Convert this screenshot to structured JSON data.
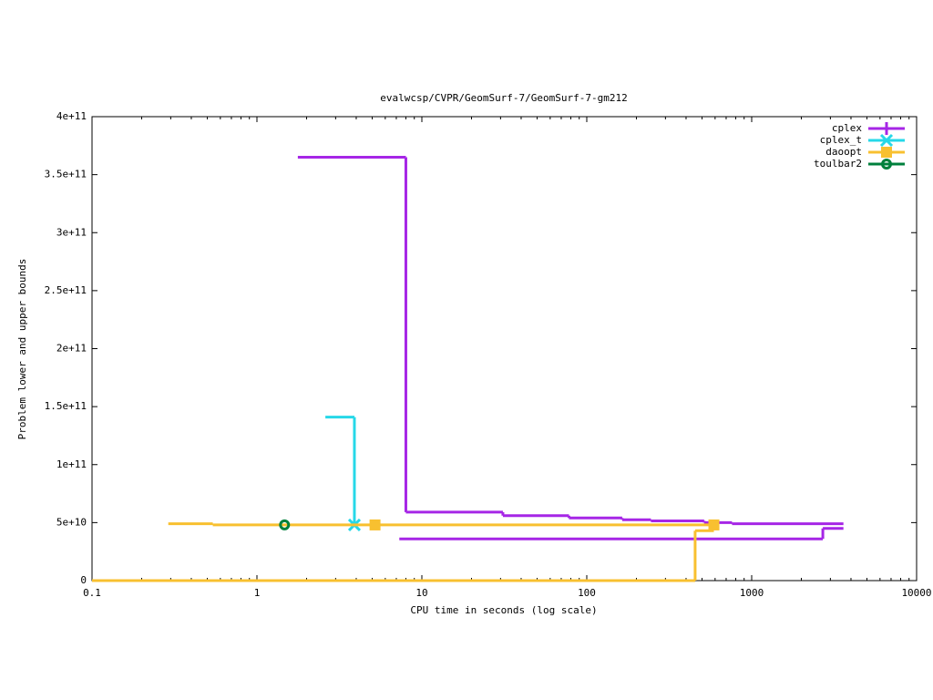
{
  "chart_data": {
    "type": "step",
    "title": "evalwcsp/CVPR/GeomSurf-7/GeomSurf-7-gm212",
    "xlabel": "CPU time in seconds (log scale)",
    "ylabel": "Problem lower and upper bounds",
    "xlog": true,
    "xlim": [
      0.1,
      10000
    ],
    "xticks": [
      0.1,
      1,
      10,
      100,
      1000,
      10000
    ],
    "ylim": [
      0,
      400000000000
    ],
    "yticks": [
      0,
      {
        "value": 50000000000,
        "label": "5e+10"
      },
      {
        "value": 100000000000,
        "label": "1e+11"
      },
      {
        "value": 150000000000,
        "label": "1.5e+11"
      },
      {
        "value": 200000000000,
        "label": "2e+11"
      },
      {
        "value": 250000000000,
        "label": "2.5e+11"
      },
      {
        "value": 300000000000,
        "label": "3e+11"
      },
      {
        "value": 350000000000,
        "label": "3.5e+11"
      },
      {
        "value": 400000000000,
        "label": "4e+11"
      }
    ],
    "legend": "top-right",
    "series": [
      {
        "name": "cplex",
        "color": "#a626e6",
        "marker": "plus",
        "upper": {
          "x": [
            1.77,
            8.0,
            31,
            78,
            164,
            245,
            515,
            760,
            3600
          ],
          "values": [
            365000000000,
            59000000000,
            56000000000,
            54000000000,
            52500000000,
            51500000000,
            50000000000,
            49000000000,
            49000000000
          ]
        },
        "lower": {
          "x": [
            7.3,
            2700,
            3600
          ],
          "values": [
            36000000000,
            45000000000,
            45000000000
          ]
        }
      },
      {
        "name": "cplex_t",
        "color": "#26d8e8",
        "marker": "cross",
        "upper": {
          "x": [
            2.6,
            3.9
          ],
          "values": [
            141000000000,
            48000000000
          ]
        },
        "points": {
          "x": [
            3.9
          ],
          "values": [
            48000000000
          ]
        }
      },
      {
        "name": "daoopt",
        "color": "#f8c030",
        "marker": "square",
        "upper": {
          "x": [
            0.29,
            0.54,
            590
          ],
          "values": [
            49000000000,
            48000000000,
            48000000000
          ]
        },
        "lower": {
          "x": [
            0.1,
            454,
            590
          ],
          "values": [
            0,
            43000000000,
            43000000000
          ]
        },
        "points": {
          "x": [
            5.2,
            590
          ],
          "values": [
            48000000000,
            48000000000
          ]
        }
      },
      {
        "name": "toulbar2",
        "color": "#00803c",
        "marker": "circle",
        "points": {
          "x": [
            1.47
          ],
          "values": [
            48000000000
          ]
        }
      }
    ]
  }
}
